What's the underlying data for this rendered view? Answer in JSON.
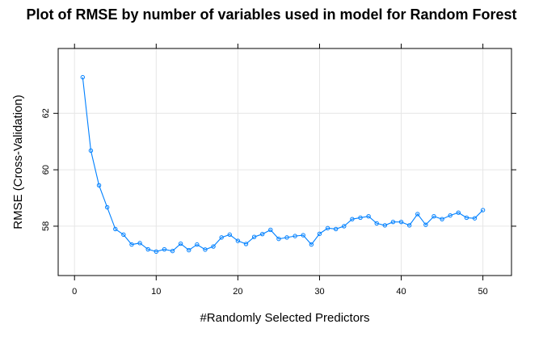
{
  "chart_data": {
    "type": "line",
    "title": "Plot of RMSE by number of variables used in model for Random Forest",
    "xlabel": "#Randomly Selected Predictors",
    "ylabel": "RMSE (Cross-Validation)",
    "xlim": [
      -2,
      53.5
    ],
    "ylim": [
      56.25,
      64.3
    ],
    "xticks": [
      0,
      10,
      20,
      30,
      40,
      50
    ],
    "yticks": [
      58,
      60,
      62
    ],
    "grid": true,
    "colors": {
      "series": "#0080ff",
      "grid": "#e6e6e6",
      "frame": "#000000"
    },
    "series": [
      {
        "x": [
          1,
          2,
          3,
          4,
          5,
          6,
          7,
          8,
          9,
          10,
          11,
          12,
          13,
          14,
          15,
          16,
          17,
          18,
          19,
          20,
          21,
          22,
          23,
          24,
          25,
          26,
          27,
          28,
          29,
          30,
          31,
          32,
          33,
          34,
          35,
          36,
          37,
          38,
          39,
          40,
          41,
          42,
          43,
          44,
          45,
          46,
          47,
          48,
          49,
          50
        ],
        "values": [
          63.28,
          60.68,
          59.45,
          58.67,
          57.9,
          57.7,
          57.35,
          57.4,
          57.18,
          57.1,
          57.18,
          57.12,
          57.38,
          57.15,
          57.35,
          57.17,
          57.28,
          57.6,
          57.7,
          57.48,
          57.37,
          57.62,
          57.72,
          57.87,
          57.55,
          57.6,
          57.65,
          57.68,
          57.35,
          57.73,
          57.93,
          57.9,
          58.0,
          58.25,
          58.3,
          58.35,
          58.1,
          58.03,
          58.15,
          58.15,
          58.03,
          58.43,
          58.05,
          58.35,
          58.25,
          58.38,
          58.48,
          58.3,
          58.28,
          58.57
        ]
      }
    ]
  }
}
